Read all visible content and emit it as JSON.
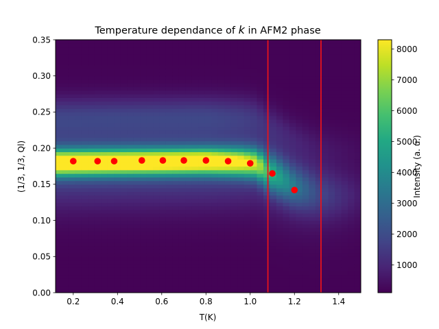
{
  "chart_data": {
    "type": "heatmap",
    "title_parts": [
      "Temperature dependance of ",
      "k",
      " in AFM2 phase"
    ],
    "xlabel": "T(K)",
    "ylabel": "(1/3, 1/3, Ql)",
    "colorbar_label": "Intensity (a. u.)",
    "colormap": "viridis",
    "xlim": [
      0.12,
      1.5
    ],
    "ylim": [
      0.0,
      0.35
    ],
    "color_range": [
      100,
      8300
    ],
    "x_ticks": [
      0.2,
      0.4,
      0.6,
      0.8,
      1.0,
      1.2,
      1.4
    ],
    "x_tick_labels": [
      "0.2",
      "0.4",
      "0.6",
      "0.8",
      "1.0",
      "1.2",
      "1.4"
    ],
    "y_ticks": [
      0.0,
      0.05,
      0.1,
      0.15,
      0.2,
      0.25,
      0.3,
      0.35
    ],
    "y_tick_labels": [
      "0.00",
      "0.05",
      "0.10",
      "0.15",
      "0.20",
      "0.25",
      "0.30",
      "0.35"
    ],
    "colorbar_ticks": [
      1000,
      2000,
      3000,
      4000,
      5000,
      6000,
      7000,
      8000
    ],
    "colorbar_tick_labels": [
      "1000",
      "2000",
      "3000",
      "4000",
      "5000",
      "6000",
      "7000",
      "8000"
    ],
    "peak_points": {
      "color": "#ff0000",
      "x": [
        0.2,
        0.31,
        0.385,
        0.51,
        0.605,
        0.7,
        0.8,
        0.9,
        1.0,
        1.1,
        1.2
      ],
      "y": [
        0.182,
        0.182,
        0.182,
        0.183,
        0.183,
        0.183,
        0.183,
        0.182,
        0.179,
        0.165,
        0.142
      ]
    },
    "vertical_lines": {
      "color": "#e8141b",
      "x": [
        1.08,
        1.32
      ]
    },
    "intensity_profile": {
      "t": [
        0.12,
        0.8,
        0.95,
        1.03,
        1.06,
        1.1,
        1.2,
        1.3,
        1.4,
        1.5
      ],
      "center": [
        0.18,
        0.182,
        0.181,
        0.179,
        0.172,
        0.165,
        0.148,
        0.138,
        0.135,
        0.135
      ],
      "peak": [
        8300,
        8100,
        7200,
        6200,
        5000,
        4000,
        2400,
        1200,
        700,
        300
      ],
      "width": [
        0.012,
        0.012,
        0.013,
        0.014,
        0.016,
        0.018,
        0.02,
        0.022,
        0.022,
        0.022
      ],
      "wing": [
        1900,
        1900,
        1700,
        1500,
        1300,
        1200,
        900,
        600,
        400,
        200
      ],
      "background": 150
    }
  }
}
